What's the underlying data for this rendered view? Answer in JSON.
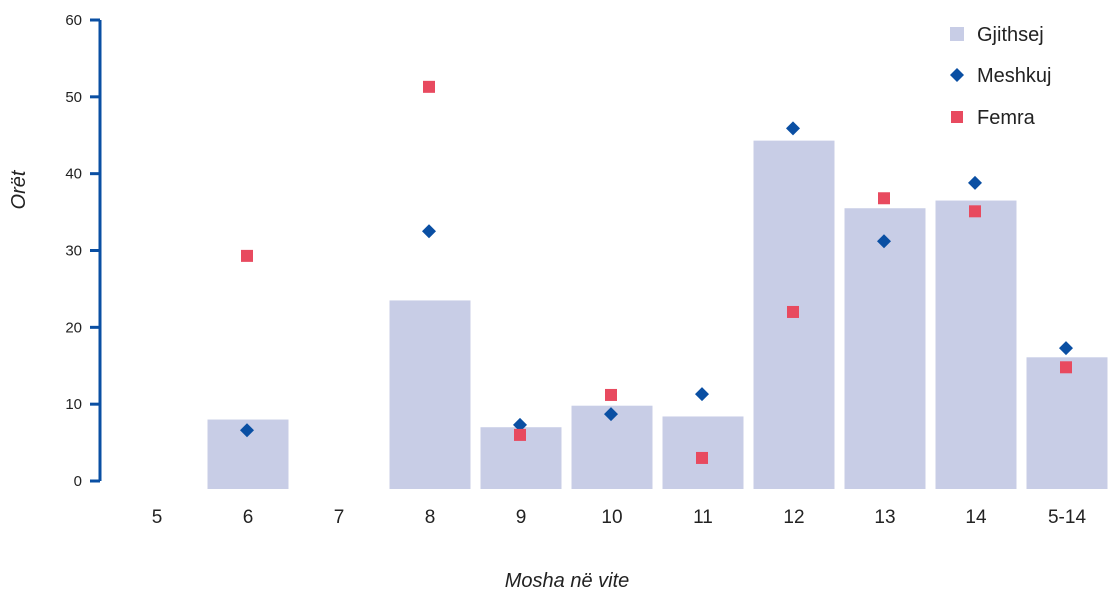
{
  "chart_data": {
    "type": "bar",
    "categories": [
      "5",
      "6",
      "7",
      "8",
      "9",
      "10",
      "11",
      "12",
      "13",
      "14",
      "5-14"
    ],
    "series": [
      {
        "name": "Gjithsej",
        "kind": "bar",
        "color": "#c8cde6",
        "values": [
          null,
          8.0,
          null,
          23.5,
          7.0,
          9.8,
          8.4,
          44.3,
          35.5,
          36.5,
          16.1
        ]
      },
      {
        "name": "Meshkuj",
        "kind": "point",
        "marker": "diamond",
        "color": "#0a4fa3",
        "values": [
          null,
          6.6,
          null,
          32.5,
          7.3,
          8.7,
          11.3,
          45.9,
          31.2,
          38.8,
          17.3
        ]
      },
      {
        "name": "Femra",
        "kind": "point",
        "marker": "square",
        "color": "#e84a5f",
        "values": [
          null,
          29.3,
          null,
          51.3,
          6.0,
          11.2,
          3.0,
          22.0,
          36.8,
          35.1,
          14.8
        ]
      }
    ],
    "yticks": [
      0,
      10,
      20,
      30,
      40,
      50,
      60
    ],
    "ylim": [
      0,
      60
    ],
    "xlabel": "Mosha në vite",
    "ylabel": "Orët",
    "axis_color": "#0a4fa3",
    "legend_position": "top-right",
    "grid": false
  }
}
